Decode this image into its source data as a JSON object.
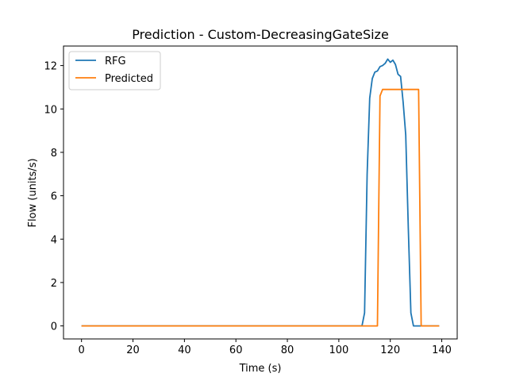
{
  "chart_data": {
    "type": "line",
    "title": "Prediction - Custom-DecreasingGateSize",
    "xlabel": "Time (s)",
    "ylabel": "Flow (units/s)",
    "xlim": [
      -7,
      146
    ],
    "ylim": [
      -0.6,
      12.9
    ],
    "xticks": [
      0,
      20,
      40,
      60,
      80,
      100,
      120,
      140
    ],
    "yticks": [
      0,
      2,
      4,
      6,
      8,
      10,
      12
    ],
    "grid": false,
    "legend_position": "top-left",
    "series": [
      {
        "name": "RFG",
        "color": "#1f77b4",
        "x": [
          0,
          109,
          110,
          111,
          112,
          113,
          114,
          115,
          116,
          117,
          118,
          119,
          120,
          121,
          122,
          123,
          124,
          125,
          126,
          127,
          128,
          129,
          130,
          139
        ],
        "y": [
          0,
          0,
          0.6,
          7.0,
          10.5,
          11.4,
          11.7,
          11.75,
          11.95,
          12.0,
          12.1,
          12.3,
          12.15,
          12.25,
          12.05,
          11.6,
          11.5,
          10.3,
          8.8,
          4.5,
          0.6,
          0,
          0,
          0
        ]
      },
      {
        "name": "Predicted",
        "color": "#ff7f0e",
        "x": [
          0,
          115,
          116,
          117,
          118,
          119,
          120,
          121,
          122,
          123,
          124,
          125,
          126,
          127,
          128,
          129,
          130,
          131,
          132,
          139
        ],
        "y": [
          0,
          0,
          10.6,
          10.9,
          10.9,
          10.9,
          10.9,
          10.9,
          10.9,
          10.9,
          10.9,
          10.9,
          10.9,
          10.9,
          10.9,
          10.9,
          10.9,
          10.9,
          0,
          0
        ]
      }
    ]
  }
}
